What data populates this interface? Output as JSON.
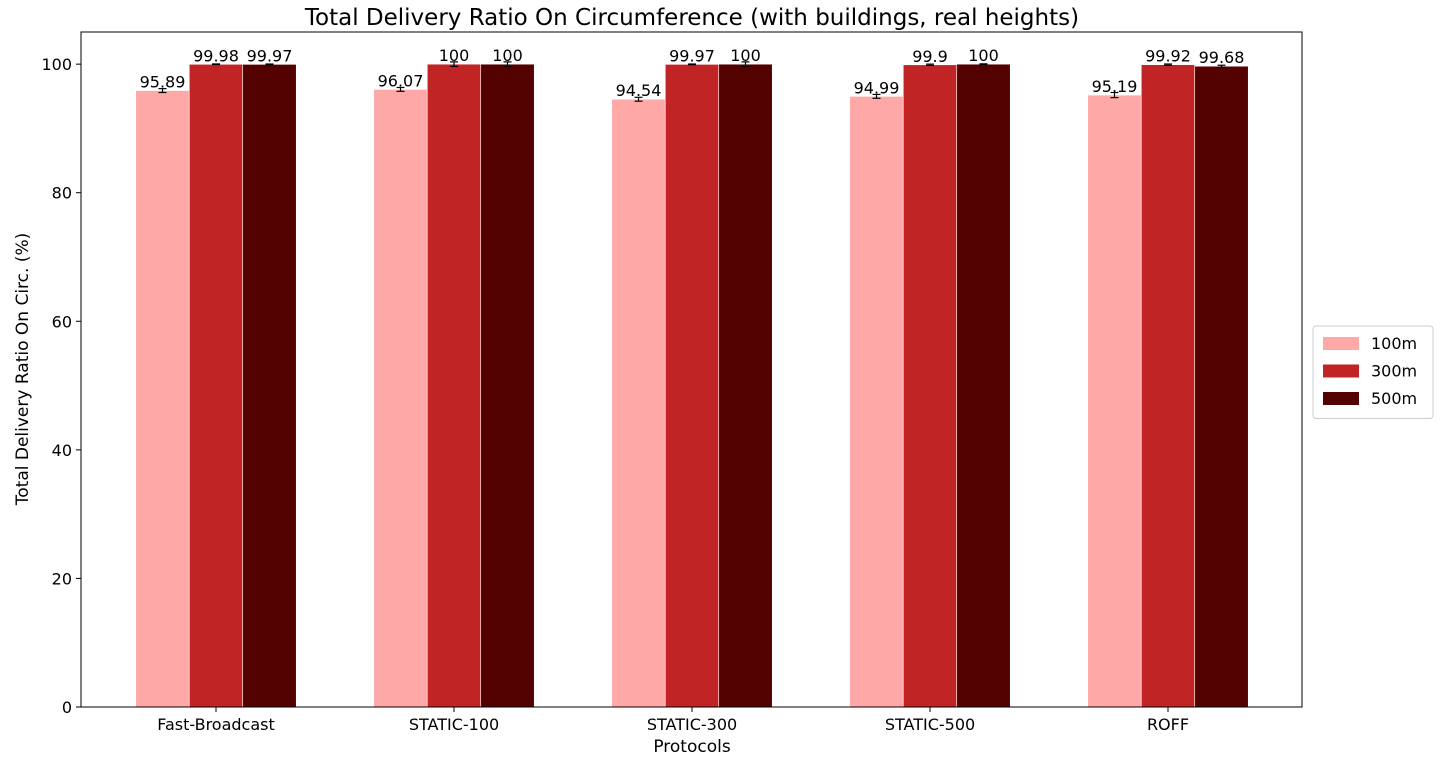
{
  "chart_data": {
    "type": "bar",
    "title": "Total Delivery Ratio On Circumference (with buildings, real heights)",
    "xlabel": "Protocols",
    "ylabel": "Total Delivery Ratio On Circ. (%)",
    "ylim": [
      0,
      105
    ],
    "yticks": [
      0,
      20,
      40,
      60,
      80,
      100
    ],
    "grid": false,
    "legend_position": "right",
    "categories": [
      "Fast-Broadcast",
      "STATIC-100",
      "STATIC-300",
      "STATIC-500",
      "ROFF"
    ],
    "series": [
      {
        "name": "100m",
        "color": "#ffa8a8",
        "values": [
          95.89,
          96.07,
          94.54,
          94.99,
          95.19
        ],
        "labels": [
          "95.89",
          "96.07",
          "94.54",
          "94.99",
          "95.19"
        ],
        "errors": [
          0.3,
          0.3,
          0.3,
          0.3,
          0.4
        ]
      },
      {
        "name": "300m",
        "color": "#c02424",
        "values": [
          99.98,
          100,
          99.97,
          99.9,
          99.92
        ],
        "labels": [
          "99.98",
          "100",
          "99.97",
          "99.9",
          "99.92"
        ],
        "errors": [
          0.05,
          0.35,
          0.05,
          0.1,
          0.1
        ]
      },
      {
        "name": "500m",
        "color": "#520000",
        "values": [
          99.97,
          100,
          100,
          100,
          99.68
        ],
        "labels": [
          "99.97",
          "100",
          "100",
          "100",
          "99.68"
        ],
        "errors": [
          0.05,
          0.35,
          0.35,
          0.05,
          0.15
        ]
      }
    ]
  }
}
